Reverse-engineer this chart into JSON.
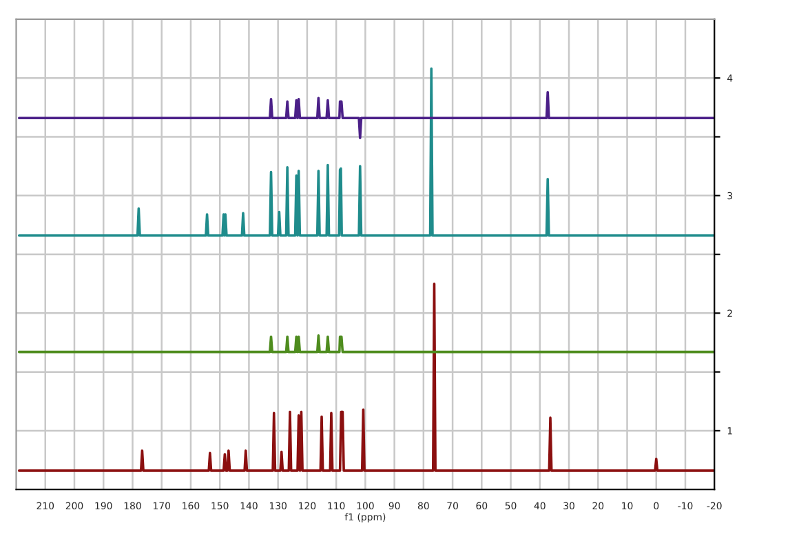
{
  "chart_data": {
    "type": "line",
    "xlabel": "f1 (ppm)",
    "xlim": [
      220,
      -20
    ],
    "xticks": [
      210,
      200,
      190,
      180,
      170,
      160,
      150,
      140,
      130,
      120,
      110,
      100,
      90,
      80,
      70,
      60,
      50,
      40,
      30,
      20,
      10,
      0,
      -10,
      -20
    ],
    "ylim": [
      0.5,
      4.5
    ],
    "yticks": [
      {
        "value": 1,
        "label": "1"
      },
      {
        "value": 1.5,
        "label": null
      },
      {
        "value": 2,
        "label": "2"
      },
      {
        "value": 2.5,
        "label": null
      },
      {
        "value": 3,
        "label": "3"
      },
      {
        "value": 3.5,
        "label": null
      },
      {
        "value": 4,
        "label": "4"
      }
    ],
    "grid": true,
    "marker": "none",
    "line_style": "solid",
    "series": [
      {
        "color": "#8b0f0f",
        "x": [
          219,
          177.1,
          176.7,
          176.3,
          153.8,
          153.4,
          153.0,
          148.7,
          148.3,
          147.9,
          147.4,
          147.0,
          146.6,
          141.5,
          141.1,
          140.7,
          131.8,
          131.4,
          131.0,
          129.2,
          128.8,
          128.4,
          126.3,
          125.9,
          125.5,
          123.3,
          122.9,
          122.45,
          122.0,
          121.6,
          115.4,
          115.0,
          114.6,
          112.1,
          111.7,
          111.3,
          108.7,
          108.3,
          107.8,
          107.4,
          101.1,
          100.7,
          100.3,
          76.7,
          76.3,
          75.9,
          36.8,
          36.4,
          36.0,
          0.4,
          0,
          -0.4,
          -20
        ],
        "values": [
          0.66,
          0.66,
          0.83,
          0.66,
          0.66,
          0.81,
          0.66,
          0.66,
          0.8,
          0.66,
          0.66,
          0.83,
          0.66,
          0.66,
          0.83,
          0.66,
          0.66,
          1.15,
          0.66,
          0.66,
          0.82,
          0.66,
          0.66,
          1.16,
          0.66,
          0.66,
          1.13,
          0.66,
          1.16,
          0.66,
          0.66,
          1.12,
          0.66,
          0.66,
          1.15,
          0.66,
          0.66,
          1.16,
          1.16,
          0.66,
          0.66,
          1.18,
          0.66,
          0.66,
          2.25,
          0.66,
          0.66,
          1.11,
          0.66,
          0.66,
          0.76,
          0.66,
          0.66
        ]
      },
      {
        "color": "#4e8c1e",
        "x": [
          219,
          132.8,
          132.4,
          132.0,
          127.2,
          126.8,
          126.4,
          124.1,
          123.7,
          123.3,
          122.9,
          122.5,
          116.5,
          116.1,
          115.7,
          113.3,
          112.9,
          112.5,
          108.9,
          108.7,
          108.2,
          107.8,
          -20
        ],
        "values": [
          1.67,
          1.67,
          1.8,
          1.67,
          1.67,
          1.8,
          1.67,
          1.67,
          1.8,
          1.67,
          1.8,
          1.67,
          1.67,
          1.81,
          1.67,
          1.67,
          1.8,
          1.67,
          1.67,
          1.8,
          1.8,
          1.67,
          1.67
        ]
      },
      {
        "color": "#1f8c8c",
        "x": [
          219,
          178.3,
          177.9,
          177.5,
          154.8,
          154.4,
          154.0,
          149.1,
          148.7,
          148.4,
          148.1,
          147.7,
          142.4,
          142.0,
          141.6,
          132.8,
          132.4,
          132.0,
          130.0,
          129.6,
          129.2,
          127.2,
          126.8,
          126.4,
          124.1,
          123.7,
          123.3,
          122.9,
          122.5,
          116.5,
          116.1,
          115.7,
          113.3,
          112.9,
          112.5,
          109.0,
          108.7,
          108.4,
          108.1,
          102.2,
          101.8,
          101.4,
          77.7,
          77.3,
          76.9,
          37.7,
          37.3,
          36.9,
          -20
        ],
        "values": [
          2.66,
          2.66,
          2.89,
          2.66,
          2.66,
          2.84,
          2.66,
          2.66,
          2.84,
          2.66,
          2.84,
          2.66,
          2.66,
          2.85,
          2.66,
          2.66,
          3.2,
          2.66,
          2.66,
          2.86,
          2.66,
          2.66,
          3.24,
          2.66,
          2.66,
          3.17,
          2.66,
          3.21,
          2.66,
          2.66,
          3.21,
          2.66,
          2.66,
          3.26,
          2.66,
          2.66,
          3.22,
          3.23,
          2.66,
          2.66,
          3.25,
          2.66,
          2.66,
          4.08,
          2.66,
          2.66,
          3.14,
          2.66,
          2.66
        ]
      },
      {
        "color": "#4b2088",
        "x": [
          219,
          132.8,
          132.4,
          132.0,
          127.2,
          126.8,
          126.4,
          124.1,
          123.7,
          123.3,
          122.9,
          122.5,
          116.5,
          116.1,
          115.7,
          113.3,
          112.9,
          112.5,
          108.9,
          108.7,
          108.2,
          107.8,
          102.2,
          101.8,
          101.4,
          37.7,
          37.3,
          36.9,
          -20
        ],
        "values": [
          3.66,
          3.66,
          3.82,
          3.66,
          3.66,
          3.8,
          3.66,
          3.66,
          3.81,
          3.66,
          3.82,
          3.66,
          3.66,
          3.83,
          3.66,
          3.66,
          3.81,
          3.66,
          3.66,
          3.8,
          3.8,
          3.66,
          3.66,
          3.49,
          3.66,
          3.66,
          3.88,
          3.66,
          3.66
        ]
      }
    ]
  }
}
